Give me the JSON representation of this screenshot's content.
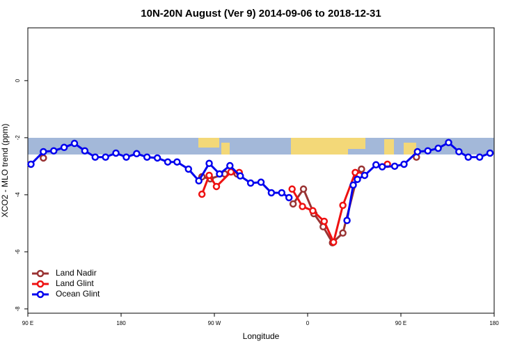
{
  "chart_data": {
    "type": "line",
    "title": "10N-20N August (Ver 9)   2014-09-06 to 2018-12-31",
    "x_label": "Longitude",
    "y_label": "XCO2 - MLO trend (ppm)",
    "xlim": [
      90,
      540
    ],
    "ylim": [
      -8.15,
      1.85
    ],
    "xticks": [
      {
        "value": 90,
        "label": "90 E"
      },
      180,
      {
        "value": 270,
        "label": "90 W"
      },
      {
        "value": 360,
        "label": "0"
      },
      {
        "value": 450,
        "label": "90 E"
      },
      {
        "value": 540,
        "label": "180"
      }
    ],
    "yticks": [
      0,
      -2,
      -4,
      -6,
      -8
    ],
    "legend": "bottom-left",
    "series": [
      {
        "name": "Land Nadir",
        "color": "#993333",
        "x": [
          105,
          180,
          258,
          266,
          280,
          292,
          320,
          346,
          356,
          366,
          375,
          384,
          394,
          408,
          412,
          440,
          465
        ],
        "values": [
          -2.71,
          null,
          -3.37,
          -3.44,
          -3.27,
          -3.27,
          null,
          -4.32,
          -3.8,
          -4.66,
          -5.12,
          -5.68,
          -5.34,
          -3.34,
          -3.1,
          null,
          -2.68
        ]
      },
      {
        "name": "Land Glint",
        "color": "#ee1111",
        "x": [
          258,
          265,
          272,
          286,
          294,
          320,
          345,
          355,
          365,
          376,
          385,
          394,
          406,
          410,
          425,
          437
        ],
        "values": [
          -3.98,
          -3.32,
          -3.71,
          -3.2,
          -3.22,
          null,
          -3.8,
          -4.41,
          -4.56,
          -4.93,
          -5.66,
          -4.37,
          -3.22,
          -3.32,
          null,
          -2.93
        ]
      },
      {
        "name": "Ocean Glint",
        "color": "#0000ee",
        "x": [
          93,
          105,
          115,
          125,
          135,
          145,
          155,
          165,
          175,
          185,
          195,
          205,
          215,
          225,
          234,
          245,
          255,
          265,
          275,
          285,
          295,
          305,
          315,
          325,
          335,
          342,
          370,
          398,
          404,
          408,
          415,
          426,
          432,
          444,
          453,
          466,
          476,
          486,
          496,
          506,
          515,
          526,
          536
        ],
        "values": [
          -2.93,
          -2.49,
          -2.46,
          -2.34,
          -2.2,
          -2.46,
          -2.68,
          -2.68,
          -2.54,
          -2.68,
          -2.56,
          -2.68,
          -2.71,
          -2.85,
          -2.85,
          -3.1,
          -3.51,
          -2.9,
          -3.27,
          -2.98,
          -3.34,
          -3.59,
          -3.56,
          -3.93,
          -3.93,
          -4.1,
          null,
          -4.9,
          -3.66,
          -3.46,
          -3.32,
          -2.95,
          -3.02,
          -3.0,
          -2.93,
          -2.49,
          -2.46,
          -2.37,
          -2.17,
          -2.49,
          -2.68,
          -2.68,
          -2.54
        ]
      }
    ]
  }
}
